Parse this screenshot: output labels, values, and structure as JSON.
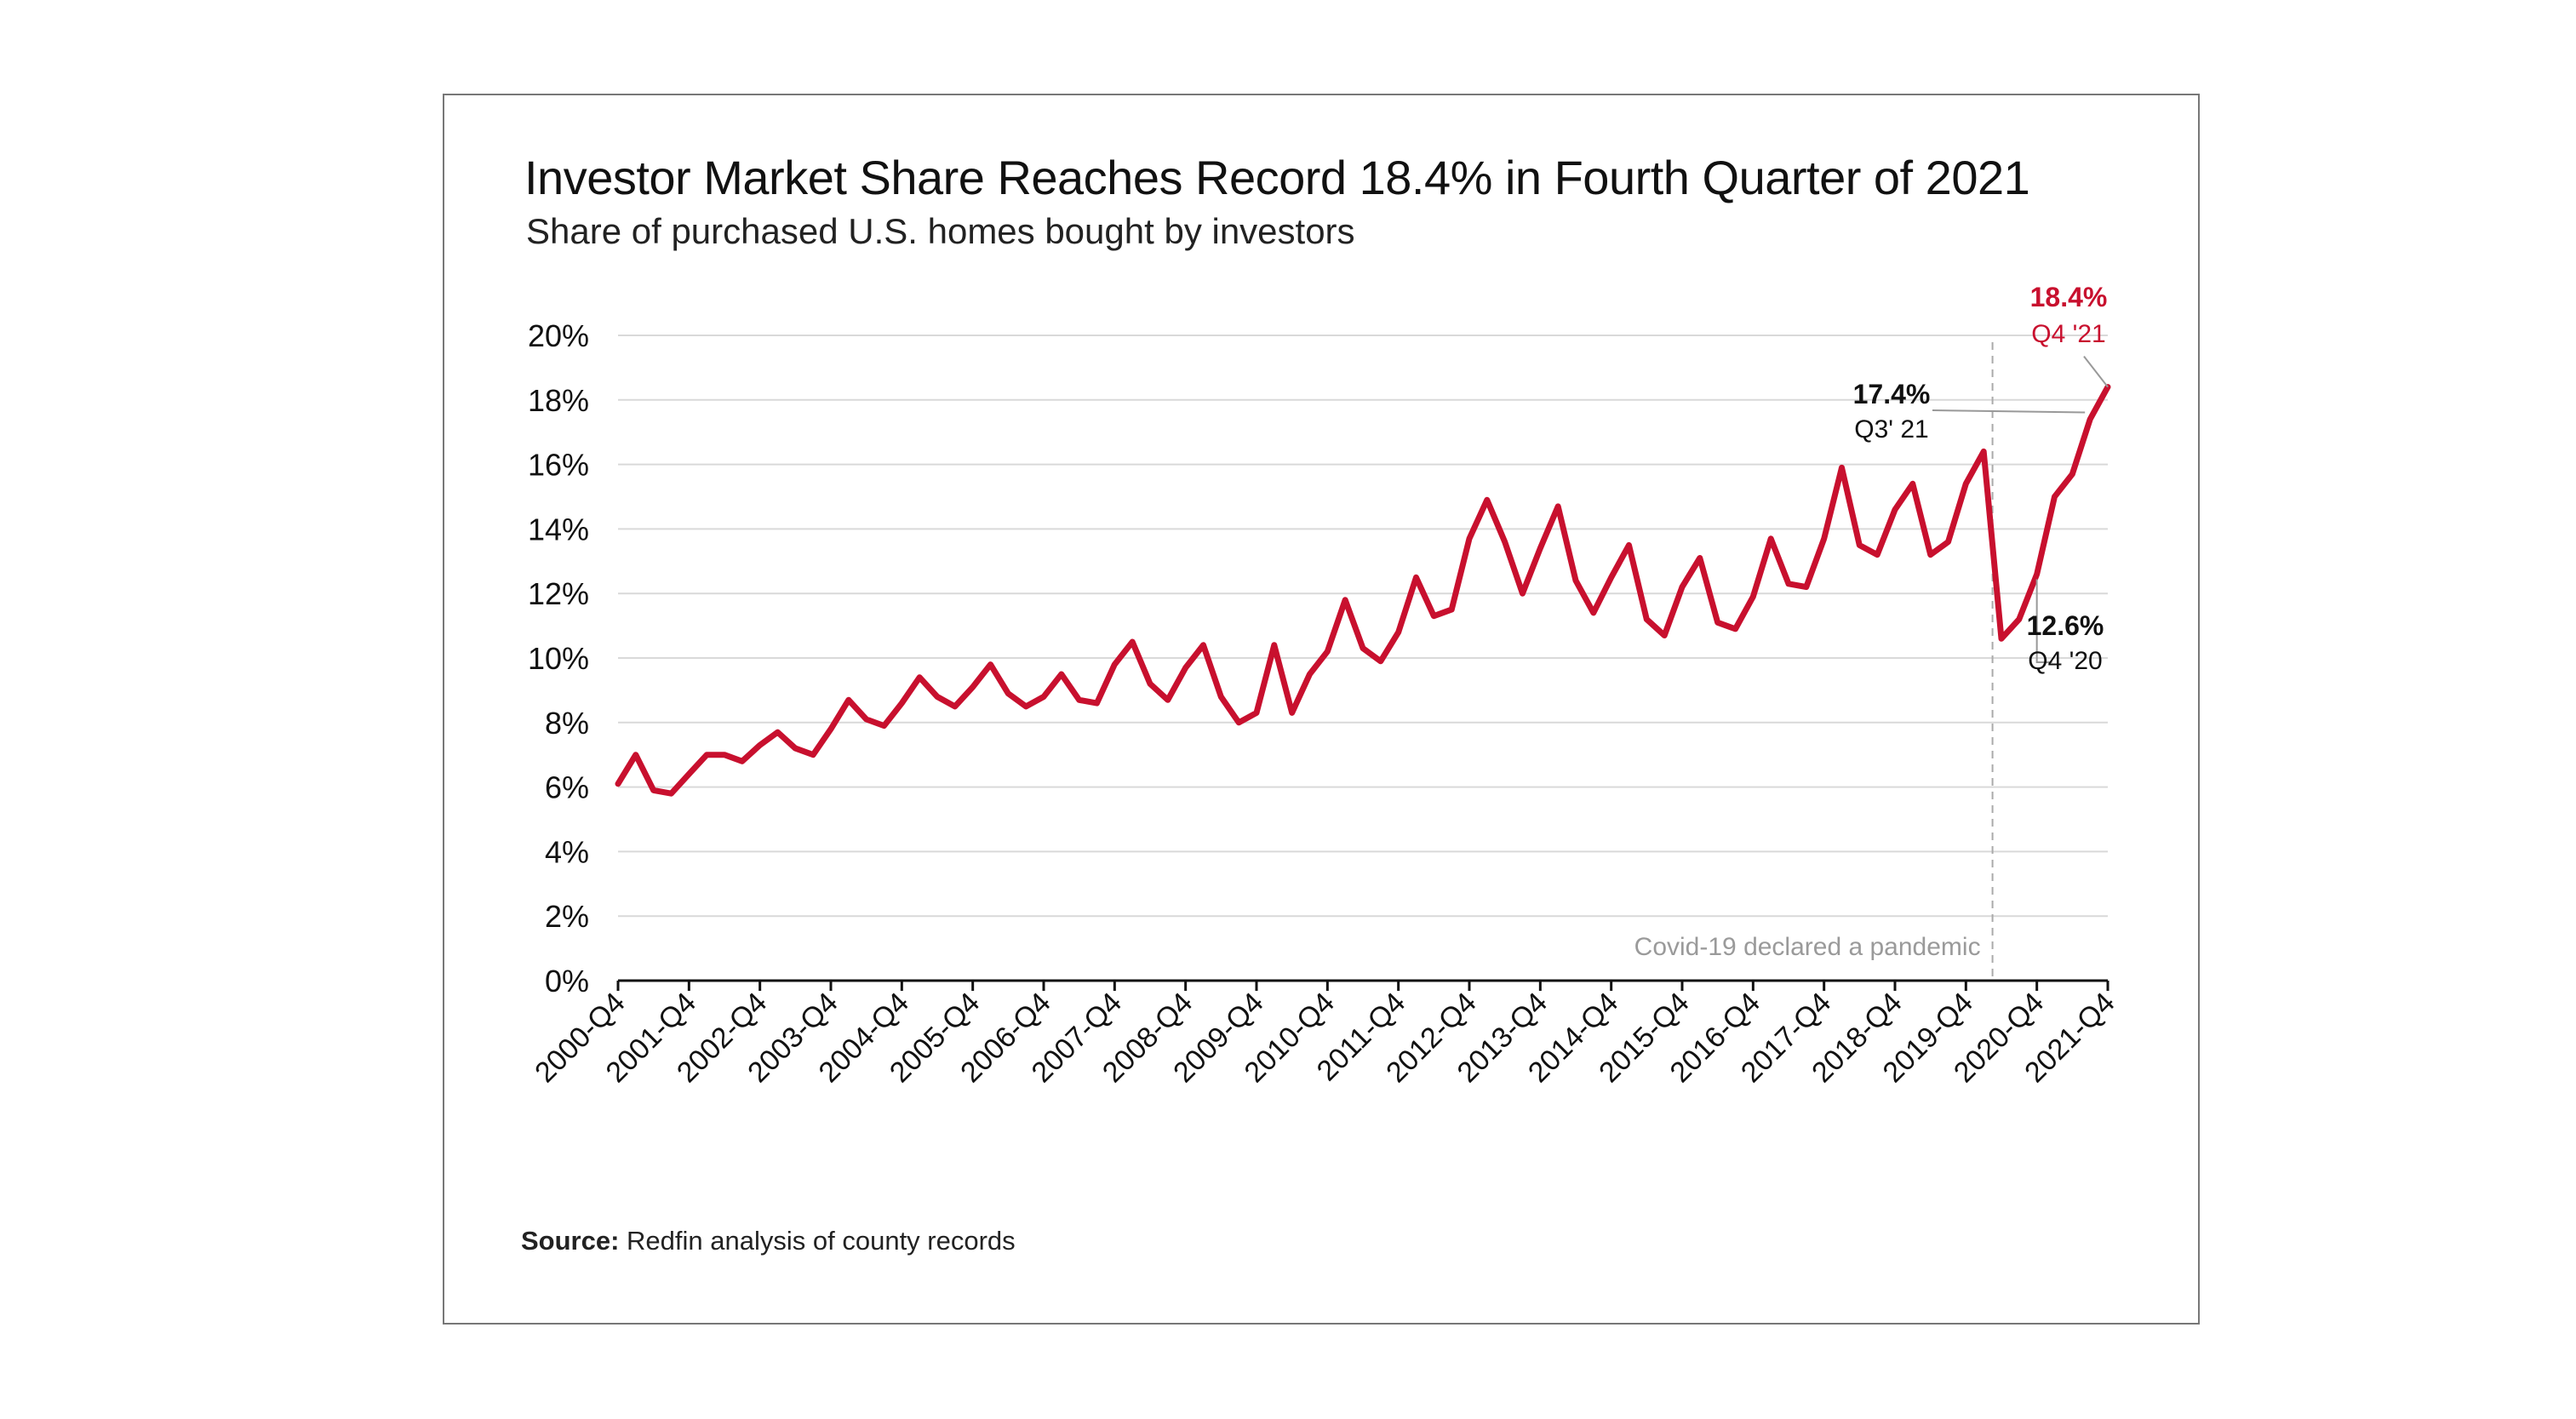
{
  "title": "Investor Market Share Reaches Record 18.4% in Fourth Quarter of 2021",
  "subtitle": "Share of purchased U.S. homes bought by investors",
  "source": {
    "label": "Source:",
    "text": "Redfin analysis of county records"
  },
  "chart_data": {
    "type": "line",
    "title": "Investor Market Share Reaches Record 18.4% in Fourth Quarter of 2021",
    "subtitle": "Share of purchased U.S. homes bought by investors",
    "xlabel": "",
    "ylabel": "",
    "ylim": [
      0,
      20
    ],
    "yticks": [
      0,
      2,
      4,
      6,
      8,
      10,
      12,
      14,
      16,
      18,
      20
    ],
    "ytick_labels": [
      "0%",
      "2%",
      "4%",
      "6%",
      "8%",
      "10%",
      "12%",
      "14%",
      "16%",
      "18%",
      "20%"
    ],
    "xtick_labels": [
      "2000-Q4",
      "2001-Q4",
      "2002-Q4",
      "2003-Q4",
      "2004-Q4",
      "2005-Q4",
      "2006-Q4",
      "2007-Q4",
      "2008-Q4",
      "2009-Q4",
      "2010-Q4",
      "2011-Q4",
      "2012-Q4",
      "2013-Q4",
      "2014-Q4",
      "2015-Q4",
      "2016-Q4",
      "2017-Q4",
      "2018-Q4",
      "2019-Q4",
      "2020-Q4",
      "2021-Q4"
    ],
    "grid": "horizontal",
    "line_color": "#c8102e",
    "series": [
      {
        "values": [
          6.1,
          7.0,
          5.9,
          5.8,
          6.4,
          7.0,
          7.0,
          6.8,
          7.3,
          7.7,
          7.2,
          7.0,
          7.8,
          8.7,
          8.1,
          7.9,
          8.6,
          9.4,
          8.8,
          8.5,
          9.1,
          9.8,
          8.9,
          8.5,
          8.8,
          9.5,
          8.7,
          8.6,
          9.8,
          10.5,
          9.2,
          8.7,
          9.7,
          10.4,
          8.8,
          8.0,
          8.3,
          10.4,
          8.3,
          9.5,
          10.2,
          11.8,
          10.3,
          9.9,
          10.8,
          12.5,
          11.3,
          11.5,
          13.7,
          14.9,
          13.6,
          12.0,
          13.4,
          14.7,
          12.4,
          11.4,
          12.5,
          13.5,
          11.2,
          10.7,
          12.2,
          13.1,
          11.1,
          10.9,
          11.9,
          13.7,
          12.3,
          12.2,
          13.7,
          15.9,
          13.5,
          13.2,
          14.6,
          15.4,
          13.2,
          13.6,
          15.4,
          16.4,
          10.6,
          11.2,
          12.6,
          15.0,
          15.7,
          17.4,
          18.4
        ]
      }
    ],
    "pandemic_marker_index": 77.5,
    "annotations": [
      {
        "index": 84,
        "value": "18.4%",
        "label": "Q4 '21",
        "color": "#c8102e"
      },
      {
        "index": 83,
        "value": "17.4%",
        "label": "Q3' 21",
        "color": "#111111"
      },
      {
        "index": 80,
        "value": "12.6%",
        "label": "Q4 '20",
        "color": "#111111"
      }
    ],
    "vline_label": "Covid-19 declared a pandemic"
  }
}
